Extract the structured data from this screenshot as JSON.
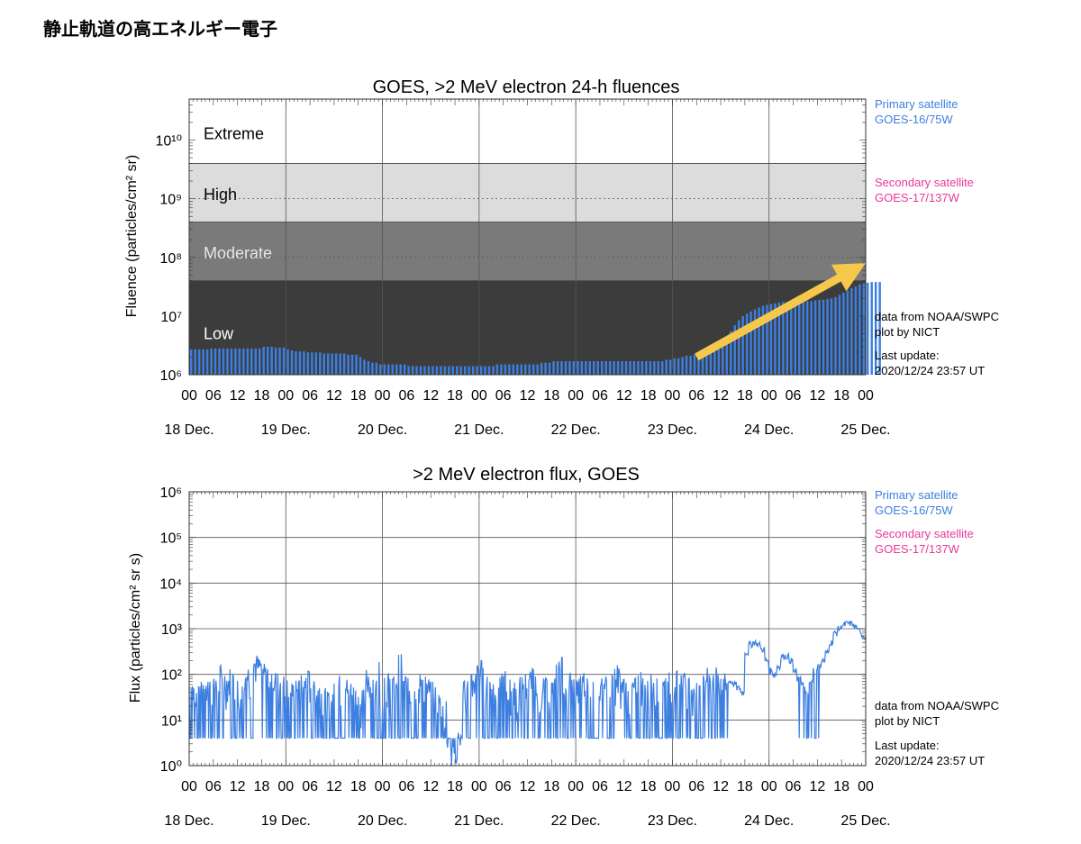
{
  "page": {
    "title": "静止軌道の高エネルギー電子"
  },
  "colors": {
    "primary": "#3d7fe0",
    "secondary": "#e8399a",
    "arrow": "#f5c84b",
    "extreme_band": "#ffffff",
    "high_band": "#dcdcdc",
    "moderate_band": "#7a7a7a",
    "low_band": "#3c3c3c"
  },
  "side_labels": {
    "primary_title": "Primary satellite",
    "primary_sat": "GOES-16/75W",
    "secondary_title": "Secondary satellite",
    "secondary_sat": "GOES-17/137W",
    "data_from": "data from NOAA/SWPC",
    "plot_by": "plot by NICT",
    "last_update_label": "Last update:",
    "last_update_value": "2020/12/24 23:57 UT"
  },
  "time_axis": {
    "hour_ticks": [
      "00",
      "06",
      "12",
      "18",
      "00",
      "06",
      "12",
      "18",
      "00",
      "06",
      "12",
      "18",
      "00",
      "06",
      "12",
      "18",
      "00",
      "06",
      "12",
      "18",
      "00",
      "06",
      "12",
      "18",
      "00",
      "06",
      "12",
      "18",
      "00"
    ],
    "day_labels": [
      "18 Dec.",
      "19 Dec.",
      "20 Dec.",
      "21 Dec.",
      "22 Dec.",
      "23 Dec.",
      "24 Dec.",
      "25 Dec."
    ]
  },
  "chart_data": [
    {
      "type": "bar",
      "title": "GOES, >2 MeV electron 24-h fluences",
      "ylabel": "Fluence (particles/cm² sr)",
      "yscale": "log",
      "ylim": [
        1000000,
        50000000000
      ],
      "xlim_hours": [
        0,
        168
      ],
      "y_tick_labels": [
        "10⁶",
        "10⁷",
        "10⁸",
        "10⁹",
        "10¹⁰"
      ],
      "bands": [
        {
          "label": "Extreme",
          "from": 4000000000,
          "to": 50000000000,
          "color_key": "extreme_band",
          "label_color": "#000000"
        },
        {
          "label": "High",
          "from": 400000000,
          "to": 4000000000,
          "color_key": "high_band",
          "label_color": "#000000"
        },
        {
          "label": "Moderate",
          "from": 40000000,
          "to": 400000000,
          "color_key": "moderate_band",
          "label_color": "#e6e6e6"
        },
        {
          "label": "Low",
          "from": 1000000,
          "to": 40000000,
          "color_key": "low_band",
          "label_color": "#ffffff"
        }
      ],
      "series": [
        {
          "name": "GOES-16/75W",
          "color_key": "primary",
          "x_hours_start": 0,
          "x_step_hours": 1,
          "values": [
            2700000,
            2700000,
            2700000,
            2700000,
            2700000,
            2800000,
            2800000,
            2800000,
            2800000,
            2800000,
            2800000,
            2800000,
            2800000,
            2800000,
            2800000,
            2800000,
            2800000,
            2800000,
            3000000,
            3000000,
            3000000,
            2900000,
            2900000,
            2900000,
            2700000,
            2600000,
            2500000,
            2500000,
            2500000,
            2400000,
            2400000,
            2400000,
            2400000,
            2300000,
            2300000,
            2300000,
            2300000,
            2300000,
            2300000,
            2200000,
            2200000,
            2200000,
            2000000,
            1800000,
            1700000,
            1600000,
            1600000,
            1500000,
            1500000,
            1500000,
            1500000,
            1500000,
            1500000,
            1500000,
            1400000,
            1400000,
            1400000,
            1400000,
            1400000,
            1400000,
            1400000,
            1400000,
            1400000,
            1400000,
            1400000,
            1400000,
            1400000,
            1400000,
            1400000,
            1400000,
            1400000,
            1400000,
            1400000,
            1400000,
            1400000,
            1400000,
            1500000,
            1500000,
            1500000,
            1500000,
            1500000,
            1500000,
            1500000,
            1500000,
            1500000,
            1500000,
            1500000,
            1600000,
            1600000,
            1600000,
            1700000,
            1700000,
            1700000,
            1700000,
            1700000,
            1700000,
            1700000,
            1700000,
            1700000,
            1700000,
            1700000,
            1700000,
            1700000,
            1700000,
            1700000,
            1700000,
            1700000,
            1700000,
            1700000,
            1700000,
            1700000,
            1700000,
            1700000,
            1700000,
            1700000,
            1700000,
            1700000,
            1700000,
            1800000,
            1800000,
            1900000,
            1900000,
            2000000,
            2100000,
            2100000,
            2200000,
            2200000,
            2300000,
            2300000,
            2400000,
            2500000,
            2700000,
            3200000,
            4000000,
            5500000,
            7000000,
            8500000,
            10000000,
            11000000,
            12000000,
            13000000,
            14000000,
            15000000,
            15500000,
            16000000,
            16500000,
            17000000,
            17500000,
            17500000,
            17500000,
            17500000,
            18000000,
            18000000,
            18000000,
            18000000,
            18500000,
            19000000,
            19000000,
            19500000,
            20000000,
            21000000,
            23000000,
            25000000,
            27000000,
            30000000,
            32000000,
            35000000,
            36000000,
            37000000,
            38000000,
            38000000,
            38000000
          ]
        }
      ]
    },
    {
      "type": "line",
      "title": ">2 MeV electron flux, GOES",
      "ylabel": "Flux (particles/cm² sr s)",
      "yscale": "log",
      "ylim": [
        1,
        1000000
      ],
      "xlim_hours": [
        0,
        168
      ],
      "y_tick_labels": [
        "10⁰",
        "10¹",
        "10²",
        "10³",
        "10⁴",
        "10⁵",
        "10⁶"
      ],
      "series": [
        {
          "name": "GOES-16/75W",
          "color_key": "primary",
          "x_hours_start": 0,
          "x_step_hours": 1,
          "values": [
            60,
            50,
            40,
            80,
            90,
            70,
            60,
            120,
            90,
            80,
            100,
            70,
            60,
            150,
            120,
            100,
            200,
            180,
            150,
            130,
            120,
            90,
            80,
            70,
            60,
            50,
            80,
            70,
            60,
            90,
            80,
            60,
            50,
            40,
            30,
            40,
            60,
            70,
            80,
            60,
            50,
            40,
            30,
            40,
            100,
            80,
            60,
            150,
            90,
            80,
            70,
            100,
            200,
            80,
            60,
            50,
            70,
            80,
            90,
            60,
            50,
            40,
            30,
            20,
            4,
            4,
            4,
            4,
            70,
            80,
            90,
            120,
            150,
            100,
            80,
            60,
            70,
            80,
            90,
            60,
            50,
            40,
            70,
            80,
            90,
            100,
            80,
            70,
            60,
            50,
            60,
            150,
            200,
            100,
            80,
            60,
            70,
            80,
            90,
            60,
            50,
            40,
            60,
            80,
            90,
            100,
            120,
            80,
            60,
            40,
            60,
            80,
            90,
            100,
            120,
            70,
            60,
            50,
            70,
            90,
            100,
            110,
            90,
            80,
            70,
            60,
            80,
            90,
            100,
            120,
            110,
            100,
            90,
            80,
            70,
            60,
            50,
            40,
            300,
            450,
            500,
            450,
            350,
            200,
            120,
            100,
            150,
            250,
            250,
            200,
            120,
            80,
            60,
            40,
            70,
            120,
            160,
            200,
            300,
            500,
            800,
            1000,
            1200,
            1300,
            1300,
            1100,
            900,
            700,
            500,
            350,
            300
          ]
        }
      ]
    }
  ]
}
